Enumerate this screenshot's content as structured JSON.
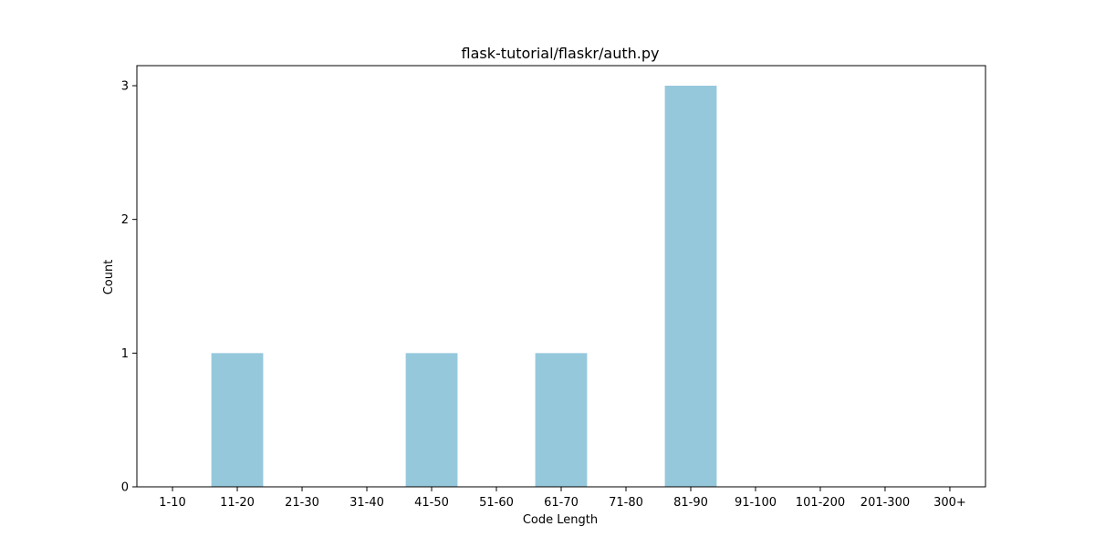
{
  "chart_data": {
    "type": "bar",
    "title": "flask-tutorial/flaskr/auth.py",
    "xlabel": "Code Length",
    "ylabel": "Count",
    "categories": [
      "1-10",
      "11-20",
      "21-30",
      "31-40",
      "41-50",
      "51-60",
      "61-70",
      "71-80",
      "81-90",
      "91-100",
      "101-200",
      "201-300",
      "300+"
    ],
    "values": [
      0,
      1,
      0,
      0,
      1,
      0,
      1,
      0,
      3,
      0,
      0,
      0,
      0
    ],
    "ylim": [
      0,
      3.15
    ],
    "yticks": [
      0,
      1,
      2,
      3
    ],
    "bar_color": "#96c8dc",
    "grid": false,
    "legend": "none"
  }
}
